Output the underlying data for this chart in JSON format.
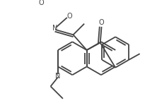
{
  "bg_color": "#ffffff",
  "line_color": "#444444",
  "line_width": 1.3,
  "figsize": [
    2.22,
    1.46
  ],
  "dpi": 100,
  "xlim": [
    0,
    220
  ],
  "ylim": [
    0,
    144
  ]
}
